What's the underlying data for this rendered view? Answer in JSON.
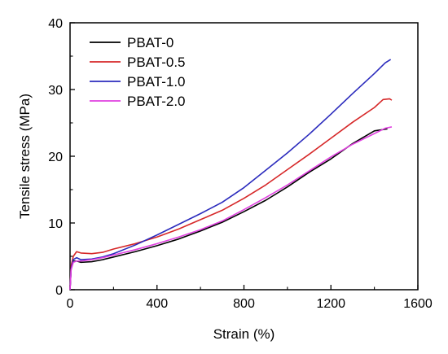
{
  "chart_data": {
    "type": "line",
    "title": "",
    "xlabel": "Strain (%)",
    "ylabel": "Tensile stress (MPa)",
    "xlim": [
      0,
      1600
    ],
    "ylim": [
      0,
      40
    ],
    "xticks": [
      "0",
      "400",
      "800",
      "1200",
      "1600"
    ],
    "yticks": [
      "0",
      "10",
      "20",
      "30",
      "40"
    ],
    "grid": false,
    "legend_position": "top-left",
    "series": [
      {
        "name": "PBAT-0",
        "color": "#000000",
        "x": [
          0,
          5,
          15,
          30,
          50,
          100,
          150,
          200,
          300,
          400,
          500,
          600,
          700,
          800,
          900,
          1000,
          1100,
          1200,
          1300,
          1400,
          1440,
          1460
        ],
        "y": [
          0,
          3.2,
          4.3,
          4.3,
          4.1,
          4.2,
          4.5,
          4.9,
          5.7,
          6.6,
          7.6,
          8.8,
          10.1,
          11.7,
          13.4,
          15.4,
          17.6,
          19.6,
          21.9,
          23.8,
          24.0,
          24.1
        ]
      },
      {
        "name": "PBAT-0.5",
        "color": "#d62728",
        "x": [
          0,
          5,
          15,
          30,
          50,
          100,
          150,
          200,
          300,
          400,
          500,
          600,
          700,
          800,
          900,
          1000,
          1100,
          1200,
          1300,
          1400,
          1440,
          1470,
          1480
        ],
        "y": [
          0,
          3.6,
          5.0,
          5.7,
          5.5,
          5.4,
          5.6,
          6.1,
          6.9,
          7.9,
          9.1,
          10.5,
          11.9,
          13.7,
          15.7,
          18.0,
          20.3,
          22.7,
          25.1,
          27.3,
          28.5,
          28.6,
          28.4
        ]
      },
      {
        "name": "PBAT-1.0",
        "color": "#2b2bbd",
        "x": [
          0,
          5,
          15,
          30,
          50,
          100,
          150,
          200,
          300,
          400,
          500,
          600,
          700,
          800,
          900,
          1000,
          1100,
          1200,
          1300,
          1400,
          1450,
          1475
        ],
        "y": [
          0,
          3.2,
          4.5,
          4.8,
          4.5,
          4.6,
          4.9,
          5.4,
          6.7,
          8.2,
          9.8,
          11.4,
          13.1,
          15.3,
          17.9,
          20.5,
          23.3,
          26.3,
          29.4,
          32.4,
          34.0,
          34.5
        ]
      },
      {
        "name": "PBAT-2.0",
        "color": "#e040e0",
        "x": [
          0,
          5,
          15,
          30,
          50,
          100,
          150,
          200,
          300,
          400,
          500,
          600,
          700,
          800,
          900,
          1000,
          1100,
          1200,
          1300,
          1400,
          1450,
          1480
        ],
        "y": [
          0,
          3.0,
          4.1,
          4.3,
          4.3,
          4.5,
          4.8,
          5.2,
          6.0,
          6.9,
          7.9,
          9.0,
          10.3,
          12.0,
          13.8,
          15.7,
          17.8,
          19.9,
          21.8,
          23.4,
          24.2,
          24.4
        ]
      }
    ]
  }
}
